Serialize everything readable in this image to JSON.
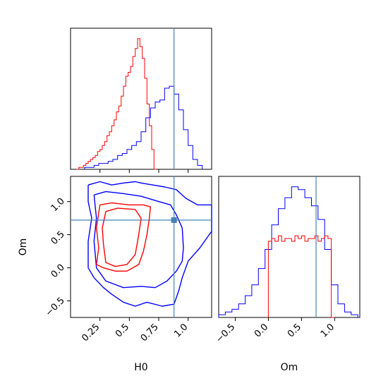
{
  "chart_data": {
    "type": "corner",
    "parameters": [
      "H0",
      "Om"
    ],
    "truths": {
      "H0": 0.88,
      "Om": 0.72
    },
    "colors": {
      "blue": "#0000ff",
      "red": "#ff0000",
      "truth": "#4682b4"
    },
    "panels": [
      {
        "id": "hist-H0",
        "type": "histogram",
        "xlim": [
          0.0,
          1.2
        ],
        "xticks": [
          0.25,
          0.5,
          0.75,
          1.0
        ],
        "series": [
          {
            "color": "#0000ff",
            "bin_edges": [
              0.12,
              0.16,
              0.2,
              0.24,
              0.28,
              0.32,
              0.36,
              0.4,
              0.44,
              0.48,
              0.52,
              0.56,
              0.6,
              0.64,
              0.68,
              0.72,
              0.76,
              0.8,
              0.84,
              0.88,
              0.92,
              0.96,
              1.0,
              1.04,
              1.08,
              1.12
            ],
            "counts": [
              1,
              1,
              2,
              3,
              3,
              4,
              5,
              7,
              8,
              10,
              12,
              14,
              19,
              26,
              31,
              34,
              35,
              41,
              42,
              38,
              30,
              20,
              12,
              5,
              2
            ]
          },
          {
            "color": "#ff0000",
            "bin_edges": [
              0.05,
              0.07,
              0.09,
              0.11,
              0.13,
              0.15,
              0.17,
              0.19,
              0.21,
              0.23,
              0.25,
              0.27,
              0.29,
              0.31,
              0.33,
              0.35,
              0.37,
              0.39,
              0.41,
              0.43,
              0.45,
              0.47,
              0.49,
              0.51,
              0.53,
              0.55,
              0.57,
              0.59,
              0.61,
              0.63,
              0.65,
              0.67,
              0.69,
              0.71,
              0.73
            ],
            "counts": [
              0,
              1,
              1,
              2,
              3,
              4,
              5,
              6,
              7,
              9,
              10,
              12,
              14,
              17,
              19,
              22,
              25,
              29,
              32,
              37,
              42,
              47,
              49,
              52,
              57,
              61,
              66,
              62,
              56,
              46,
              33,
              22,
              10,
              0
            ]
          }
        ]
      },
      {
        "id": "scatter-H0-Om",
        "type": "contour",
        "xlim": [
          0.0,
          1.2
        ],
        "ylim": [
          -0.75,
          1.38
        ],
        "xticks": [
          0.25,
          0.5,
          0.75,
          1.0
        ],
        "yticks": [
          -0.5,
          0.0,
          0.5,
          1.0
        ],
        "contours": [
          {
            "color": "#0000ff",
            "points": [
              [
                0.15,
                1.25
              ],
              [
                0.25,
                1.3
              ],
              [
                0.35,
                1.25
              ],
              [
                0.45,
                1.28
              ],
              [
                0.55,
                1.3
              ],
              [
                0.6,
                1.28
              ],
              [
                0.7,
                1.25
              ],
              [
                0.8,
                1.22
              ],
              [
                0.9,
                1.18
              ],
              [
                0.98,
                1.05
              ],
              [
                1.08,
                0.95
              ],
              [
                1.2,
                0.95
              ],
              [
                1.2,
                0.55
              ],
              [
                1.1,
                0.3
              ],
              [
                1.0,
                0.1
              ],
              [
                0.95,
                -0.15
              ],
              [
                0.92,
                -0.35
              ],
              [
                0.88,
                -0.55
              ],
              [
                0.78,
                -0.58
              ],
              [
                0.65,
                -0.52
              ],
              [
                0.55,
                -0.58
              ],
              [
                0.45,
                -0.52
              ],
              [
                0.35,
                -0.4
              ],
              [
                0.28,
                -0.3
              ],
              [
                0.2,
                -0.15
              ],
              [
                0.15,
                0.0
              ],
              [
                0.15,
                0.4
              ],
              [
                0.18,
                0.75
              ],
              [
                0.15,
                1.0
              ],
              [
                0.15,
                1.25
              ]
            ]
          },
          {
            "color": "#0000ff",
            "points": [
              [
                0.2,
                1.1
              ],
              [
                0.3,
                1.15
              ],
              [
                0.45,
                1.12
              ],
              [
                0.6,
                1.08
              ],
              [
                0.75,
                1.0
              ],
              [
                0.85,
                0.95
              ],
              [
                0.9,
                0.8
              ],
              [
                0.95,
                0.6
              ],
              [
                0.96,
                0.3
              ],
              [
                0.95,
                0.1
              ],
              [
                0.9,
                -0.05
              ],
              [
                0.82,
                -0.2
              ],
              [
                0.72,
                -0.3
              ],
              [
                0.6,
                -0.28
              ],
              [
                0.45,
                -0.3
              ],
              [
                0.3,
                -0.2
              ],
              [
                0.22,
                0.0
              ],
              [
                0.2,
                0.4
              ],
              [
                0.22,
                0.75
              ],
              [
                0.2,
                1.1
              ]
            ]
          },
          {
            "color": "#ff0000",
            "points": [
              [
                0.25,
                0.95
              ],
              [
                0.35,
                0.98
              ],
              [
                0.5,
                0.95
              ],
              [
                0.62,
                0.95
              ],
              [
                0.68,
                0.92
              ],
              [
                0.67,
                0.75
              ],
              [
                0.65,
                0.5
              ],
              [
                0.62,
                0.25
              ],
              [
                0.58,
                0.05
              ],
              [
                0.48,
                -0.05
              ],
              [
                0.38,
                -0.05
              ],
              [
                0.28,
                0.0
              ],
              [
                0.22,
                0.05
              ],
              [
                0.24,
                0.3
              ],
              [
                0.22,
                0.6
              ],
              [
                0.25,
                0.95
              ]
            ]
          },
          {
            "color": "#ff0000",
            "points": [
              [
                0.3,
                0.85
              ],
              [
                0.4,
                0.9
              ],
              [
                0.55,
                0.88
              ],
              [
                0.6,
                0.75
              ],
              [
                0.58,
                0.5
              ],
              [
                0.55,
                0.2
              ],
              [
                0.48,
                0.05
              ],
              [
                0.38,
                0.02
              ],
              [
                0.3,
                0.08
              ],
              [
                0.28,
                0.35
              ],
              [
                0.27,
                0.6
              ],
              [
                0.3,
                0.85
              ]
            ]
          }
        ]
      },
      {
        "id": "hist-Om",
        "type": "histogram",
        "xlim": [
          -0.75,
          1.38
        ],
        "xticks": [
          -0.5,
          0.0,
          0.5,
          1.0
        ],
        "series": [
          {
            "color": "#0000ff",
            "bin_edges": [
              -0.75,
              -0.65,
              -0.55,
              -0.45,
              -0.35,
              -0.25,
              -0.15,
              -0.05,
              0.05,
              0.15,
              0.25,
              0.35,
              0.45,
              0.55,
              0.65,
              0.75,
              0.85,
              0.95,
              1.05,
              1.15,
              1.25,
              1.35
            ],
            "counts": [
              1,
              2,
              3,
              5,
              8,
              12,
              18,
              25,
              34,
              40,
              44,
              48,
              47,
              44,
              41,
              36,
              25,
              12,
              5,
              2,
              1
            ]
          },
          {
            "color": "#ff0000",
            "bin_edges": [
              0.0,
              0.05,
              0.1,
              0.15,
              0.2,
              0.25,
              0.3,
              0.35,
              0.4,
              0.45,
              0.5,
              0.55,
              0.6,
              0.65,
              0.7,
              0.75,
              0.8,
              0.85,
              0.9,
              0.95,
              1.0
            ],
            "counts": [
              28,
              29,
              28,
              30,
              28,
              29,
              29,
              28,
              30,
              29,
              30,
              28,
              29,
              29,
              30,
              28,
              29,
              30,
              29,
              0
            ]
          }
        ]
      }
    ]
  }
}
